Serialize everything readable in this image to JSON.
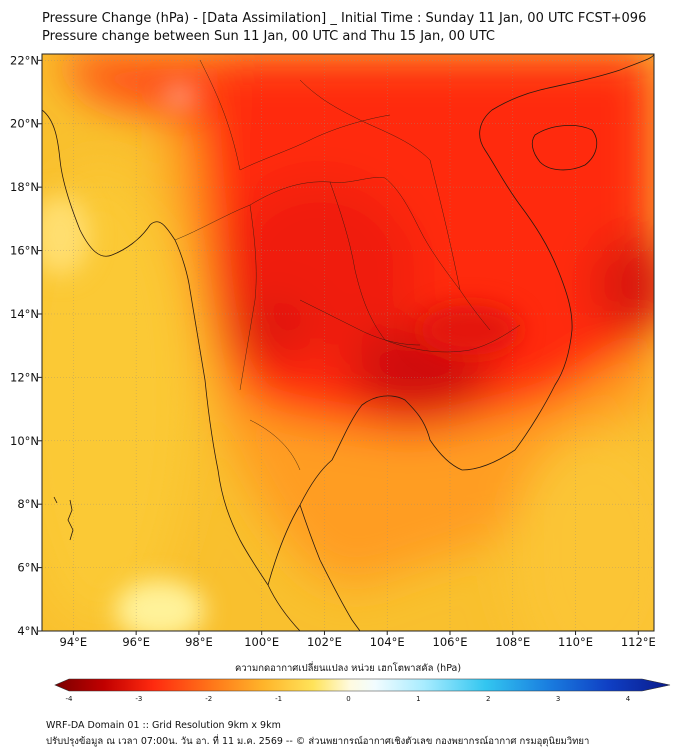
{
  "title_line1": "Pressure Change (hPa) - [Data Assimilation] _ Initial Time : Sunday 11 Jan, 00 UTC FCST+096",
  "title_line2": "Pressure change between Sun 11 Jan, 00 UTC and Thu 15 Jan, 00 UTC",
  "map": {
    "lon_range": [
      93,
      112.5
    ],
    "lat_range": [
      4,
      22.2
    ],
    "lon_ticks": [
      "94°E",
      "96°E",
      "98°E",
      "100°E",
      "102°E",
      "104°E",
      "106°E",
      "108°E",
      "110°E",
      "112°E"
    ],
    "lon_tick_values": [
      94,
      96,
      98,
      100,
      102,
      104,
      106,
      108,
      110,
      112
    ],
    "lat_ticks": [
      "4°N",
      "6°N",
      "8°N",
      "10°N",
      "12°N",
      "14°N",
      "16°N",
      "18°N",
      "20°N",
      "22°N"
    ],
    "lat_tick_values": [
      4,
      6,
      8,
      10,
      12,
      14,
      16,
      18,
      20,
      22
    ],
    "grid": true
  },
  "colorbar": {
    "title": "ความกดอากาศเปลี่ยนแปลง หน่วย เฮกโตพาสคัล (hPa)",
    "ticks": [
      "-4",
      "-3",
      "-2",
      "-1",
      "0",
      "1",
      "2",
      "3",
      "4"
    ],
    "tick_values": [
      -4,
      -3,
      -2,
      -1,
      0,
      1,
      2,
      3,
      4
    ],
    "range": [
      -4.4,
      4.4
    ]
  },
  "footer_line1": "WRF-DA Domain 01 :: Grid Resolution 9km x 9km",
  "footer_line2": "ปรับปรุงข้อมูล ณ เวลา 07:00น. วัน อา. ที่ 11 ม.ค. 2569 -- © ส่วนพยากรณ์อากาศเชิงตัวเลข กองพยากรณ์อากาศ กรมอุตุนิยมวิทยา"
}
